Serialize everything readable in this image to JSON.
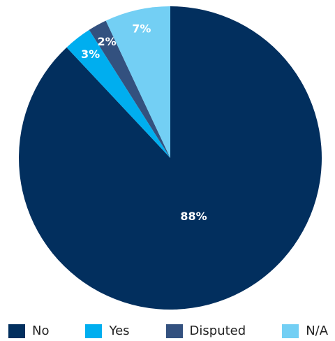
{
  "chart_data": {
    "type": "pie",
    "categories": [
      "No",
      "Yes",
      "Disputed",
      "N/A"
    ],
    "values": [
      88,
      3,
      2,
      7
    ],
    "labels": [
      "88%",
      "3%",
      "2%",
      "7%"
    ],
    "colors": [
      "#022f5e",
      "#00aeef",
      "#33517f",
      "#73cff4"
    ],
    "legend_position": "bottom",
    "start_angle_deg": 0,
    "direction": "clockwise"
  },
  "legend": {
    "items": [
      {
        "label": "No",
        "color": "#022f5e"
      },
      {
        "label": "Yes",
        "color": "#00aeef"
      },
      {
        "label": "Disputed",
        "color": "#33517f"
      },
      {
        "label": "N/A",
        "color": "#73cff4"
      }
    ]
  }
}
